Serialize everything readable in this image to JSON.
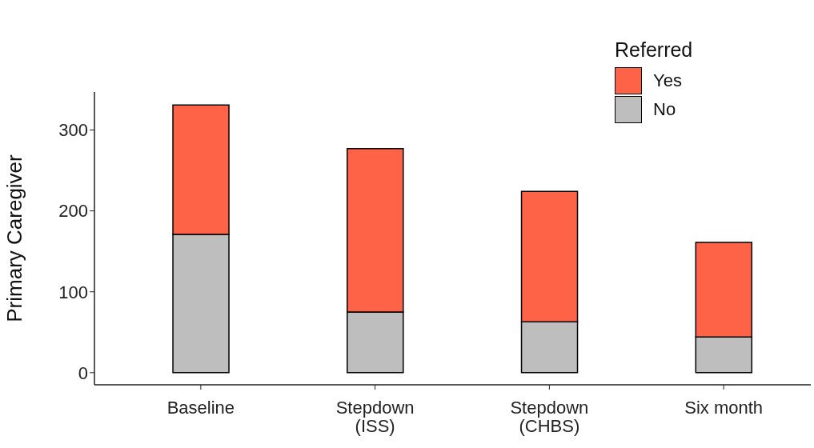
{
  "chart_data": {
    "type": "bar",
    "stacked": true,
    "ylabel": "Primary Caregiver",
    "legend_title": "Referred",
    "legend": "top right",
    "grid": false,
    "categories": [
      "Baseline",
      "Stepdown (ISS)",
      "Stepdown (CHBS)",
      "Six month"
    ],
    "series": [
      {
        "name": "No",
        "color": "#bebebe",
        "values": [
          171,
          75,
          63,
          44
        ]
      },
      {
        "name": "Yes",
        "color": "#ff6347",
        "values": [
          160,
          202,
          161,
          117
        ]
      }
    ],
    "ylim": [
      -15,
      347
    ],
    "yticks": [
      0,
      100,
      200,
      300
    ]
  }
}
